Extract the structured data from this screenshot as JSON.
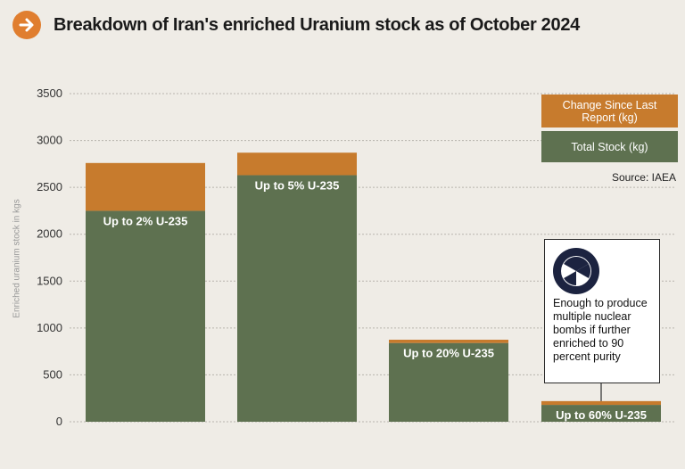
{
  "header": {
    "title": "Breakdown of Iran's enriched Uranium stock as of October 2024",
    "badge_icon": "arrow-right-icon"
  },
  "legend": {
    "change_label": "Change Since Last Report (kg)",
    "total_label": "Total Stock (kg)"
  },
  "source": "Source: IAEA",
  "callout": {
    "icon": "radiation-icon",
    "text": "Enough to produce multiple nuclear bombs if further enriched to 90 percent purity"
  },
  "colors": {
    "total": "#5e7150",
    "change": "#c77b2d",
    "accent": "#e07e2f",
    "icon_bg": "#1c2340"
  },
  "chart_data": {
    "type": "bar",
    "stacked": true,
    "title": "Breakdown of Iran's enriched Uranium stock as of October 2024",
    "ylabel": "Enriched uranium stock in kgs",
    "ylim": [
      0,
      3500
    ],
    "yticks": [
      0,
      500,
      1000,
      1500,
      2000,
      2500,
      3000,
      3500
    ],
    "grid": true,
    "legend_position": "top-right",
    "categories": [
      "Up to 2% U-235",
      "Up to 5% U-235",
      "Up to 20% U-235",
      "Up to 60% U-235"
    ],
    "series": [
      {
        "name": "Total Stock (kg)",
        "values": [
          2250,
          2630,
          840,
          180
        ]
      },
      {
        "name": "Change Since Last Report (kg)",
        "values": [
          510,
          240,
          35,
          40
        ]
      }
    ]
  }
}
